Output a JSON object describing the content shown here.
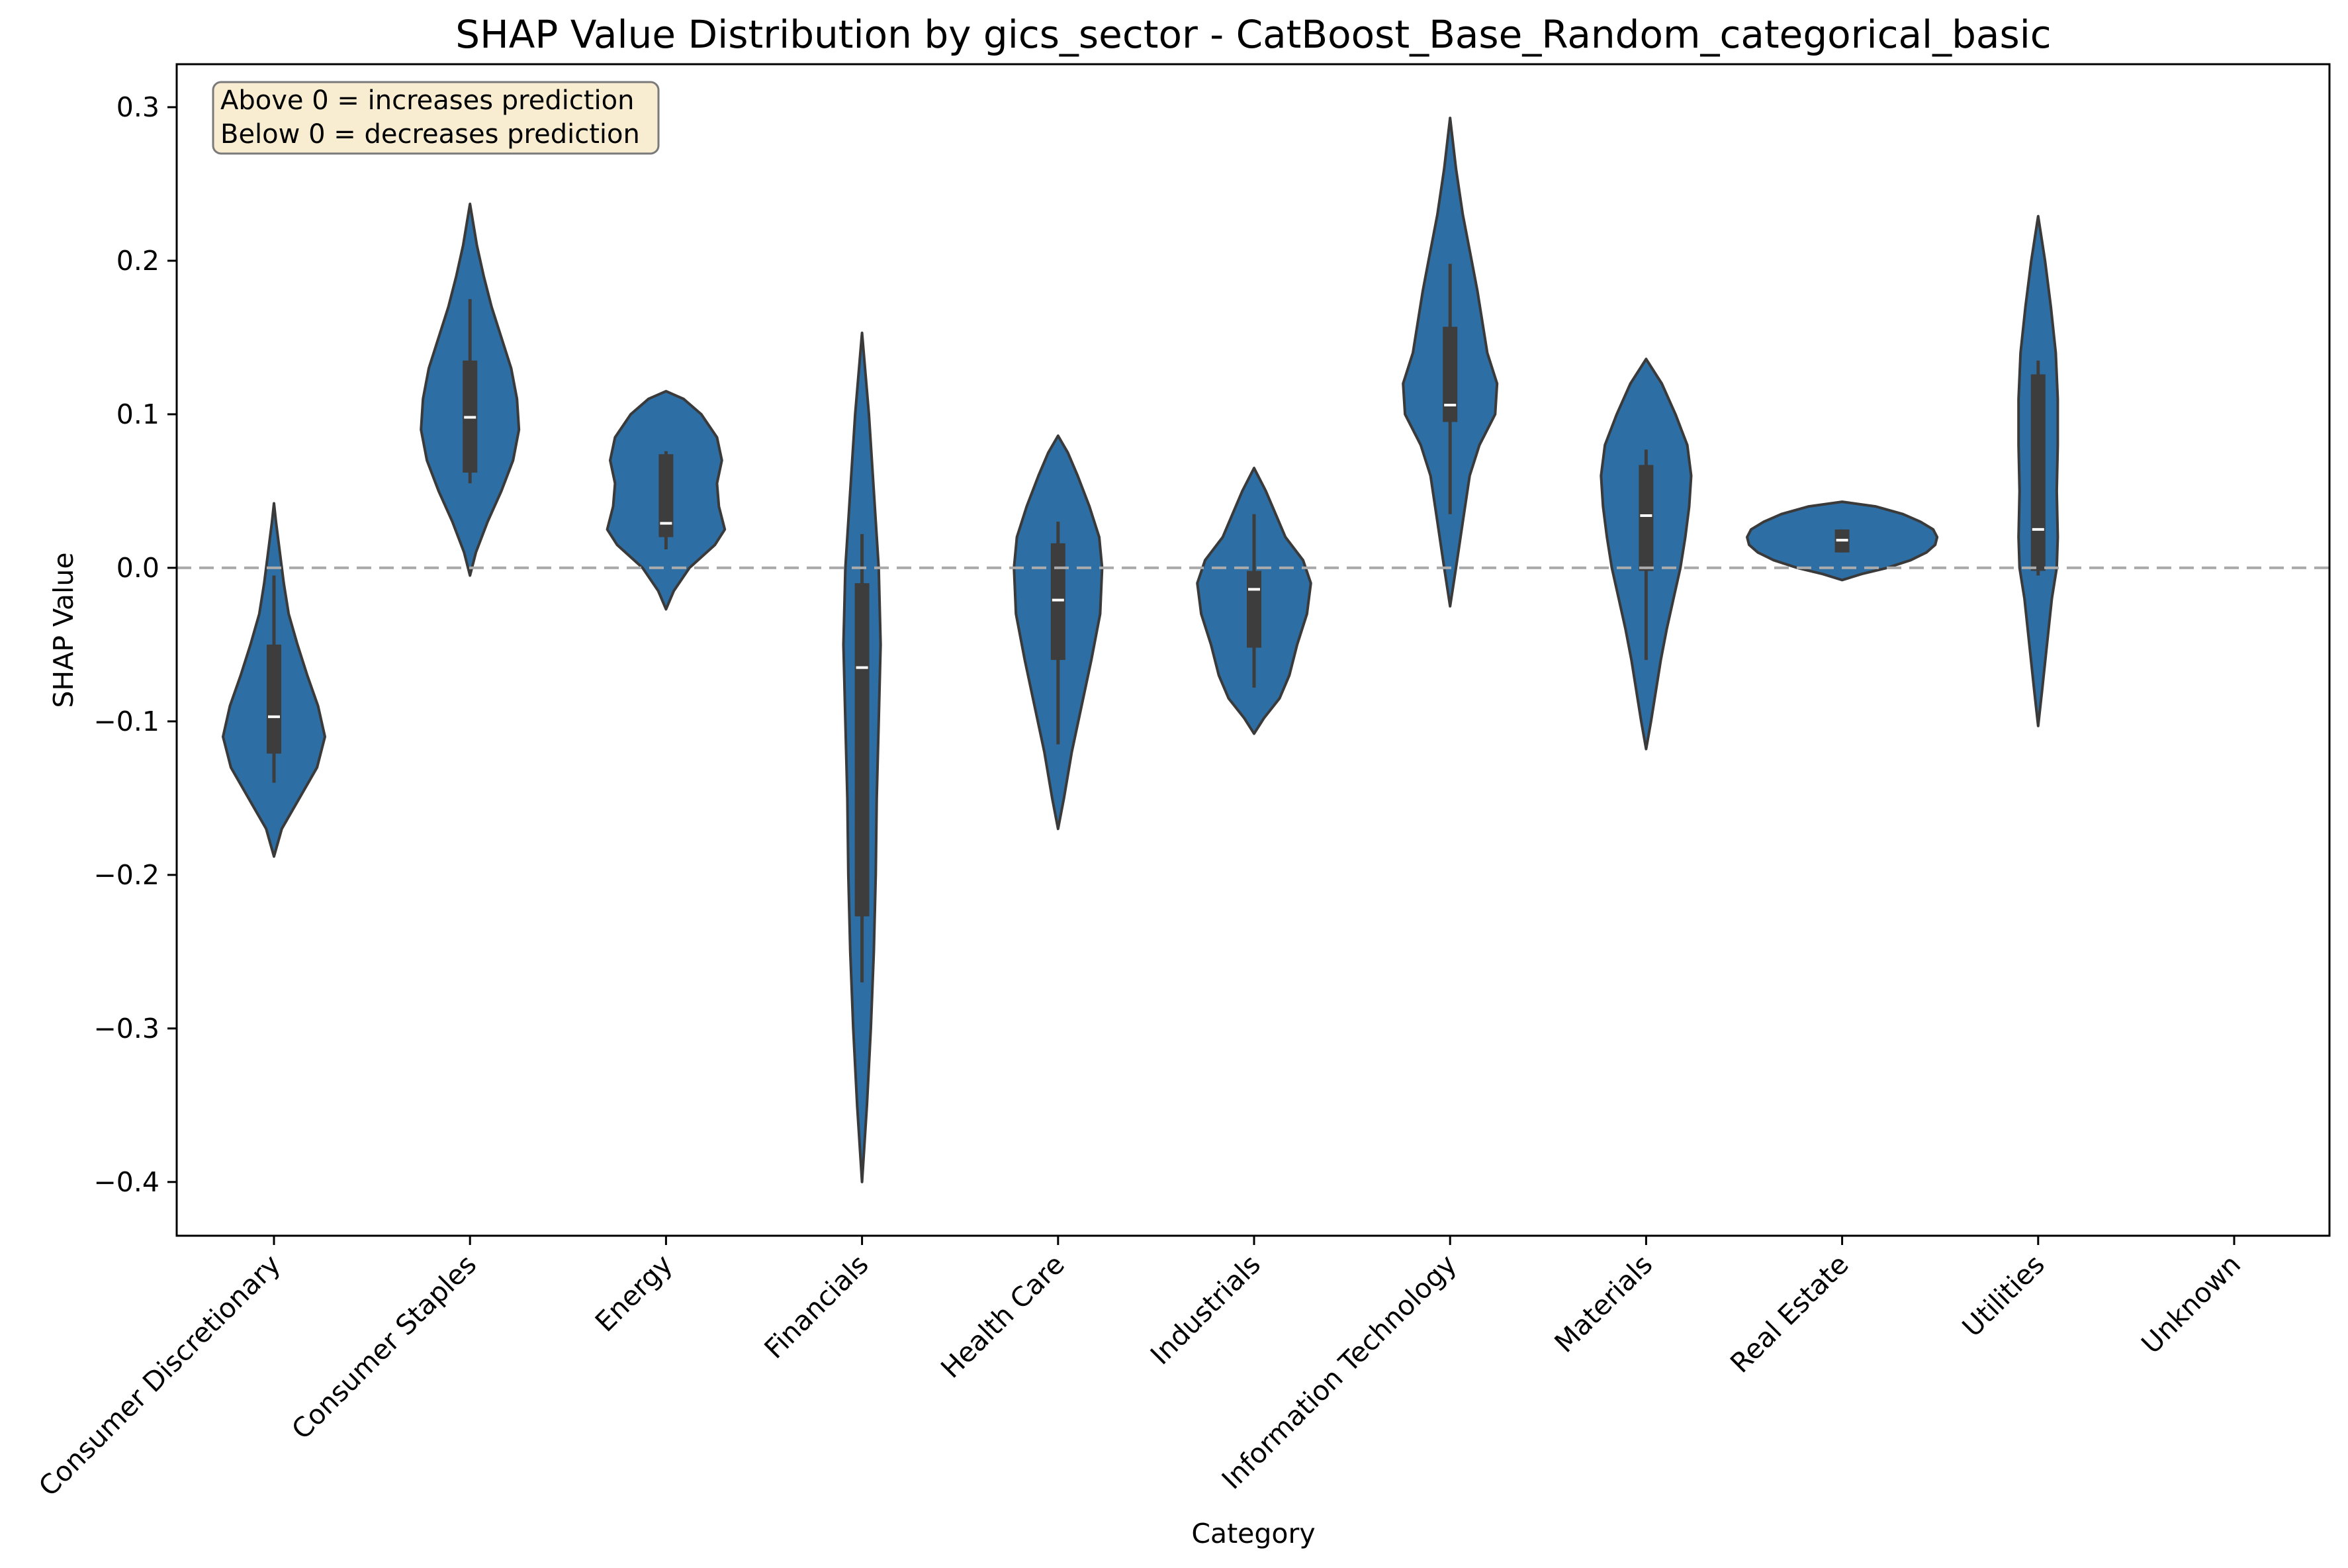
{
  "chart_data": {
    "type": "violin",
    "title": "SHAP Value Distribution by gics_sector - CatBoost_Base_Random_categorical_basic",
    "xlabel": "Category",
    "ylabel": "SHAP Value",
    "ylim": [
      -0.435,
      0.328
    ],
    "yticks": [
      0.3,
      0.2,
      0.1,
      0.0,
      -0.1,
      -0.2,
      -0.3,
      -0.4
    ],
    "ytick_labels": [
      "0.3",
      "0.2",
      "0.1",
      "0.0",
      "−0.1",
      "−0.2",
      "−0.3",
      "−0.4"
    ],
    "reference_line": 0.0,
    "annotation": [
      "Above 0 = increases prediction",
      "Below 0 = decreases prediction"
    ],
    "categories": [
      "Consumer Discretionary",
      "Consumer Staples",
      "Energy",
      "Financials",
      "Health Care",
      "Industrials",
      "Information Technology",
      "Materials",
      "Real Estate",
      "Utilities",
      "Unknown"
    ],
    "violins": [
      {
        "min": -0.188,
        "max": 0.042,
        "q1": -0.121,
        "median": -0.097,
        "q3": -0.05,
        "whisker_low": -0.14,
        "whisker_high": -0.005,
        "profile": [
          [
            -0.188,
            0
          ],
          [
            -0.17,
            0.08
          ],
          [
            -0.15,
            0.26
          ],
          [
            -0.13,
            0.44
          ],
          [
            -0.11,
            0.52
          ],
          [
            -0.09,
            0.45
          ],
          [
            -0.07,
            0.34
          ],
          [
            -0.05,
            0.24
          ],
          [
            -0.03,
            0.15
          ],
          [
            -0.01,
            0.1
          ],
          [
            0.01,
            0.06
          ],
          [
            0.03,
            0.02
          ],
          [
            0.042,
            0
          ]
        ]
      },
      {
        "min": -0.005,
        "max": 0.237,
        "q1": 0.062,
        "median": 0.098,
        "q3": 0.135,
        "whisker_low": 0.055,
        "whisker_high": 0.175,
        "profile": [
          [
            -0.005,
            0
          ],
          [
            0.01,
            0.06
          ],
          [
            0.03,
            0.18
          ],
          [
            0.05,
            0.32
          ],
          [
            0.07,
            0.44
          ],
          [
            0.09,
            0.5
          ],
          [
            0.11,
            0.48
          ],
          [
            0.13,
            0.42
          ],
          [
            0.15,
            0.32
          ],
          [
            0.17,
            0.22
          ],
          [
            0.19,
            0.14
          ],
          [
            0.21,
            0.07
          ],
          [
            0.237,
            0
          ]
        ]
      },
      {
        "min": -0.027,
        "max": 0.115,
        "q1": 0.02,
        "median": 0.029,
        "q3": 0.074,
        "whisker_low": 0.012,
        "whisker_high": 0.076,
        "profile": [
          [
            -0.027,
            0
          ],
          [
            -0.015,
            0.08
          ],
          [
            0.0,
            0.24
          ],
          [
            0.015,
            0.5
          ],
          [
            0.025,
            0.6
          ],
          [
            0.04,
            0.54
          ],
          [
            0.055,
            0.52
          ],
          [
            0.07,
            0.57
          ],
          [
            0.085,
            0.52
          ],
          [
            0.1,
            0.36
          ],
          [
            0.11,
            0.18
          ],
          [
            0.115,
            0
          ]
        ]
      },
      {
        "min": -0.4,
        "max": 0.153,
        "q1": -0.227,
        "median": -0.065,
        "q3": -0.01,
        "whisker_low": -0.27,
        "whisker_high": 0.022,
        "profile": [
          [
            -0.4,
            0
          ],
          [
            -0.35,
            0.05
          ],
          [
            -0.3,
            0.09
          ],
          [
            -0.25,
            0.12
          ],
          [
            -0.2,
            0.14
          ],
          [
            -0.15,
            0.15
          ],
          [
            -0.1,
            0.17
          ],
          [
            -0.05,
            0.19
          ],
          [
            0.0,
            0.17
          ],
          [
            0.05,
            0.12
          ],
          [
            0.1,
            0.07
          ],
          [
            0.153,
            0
          ]
        ]
      },
      {
        "min": -0.17,
        "max": 0.086,
        "q1": -0.06,
        "median": -0.021,
        "q3": 0.016,
        "whisker_low": -0.115,
        "whisker_high": 0.03,
        "profile": [
          [
            -0.17,
            0
          ],
          [
            -0.15,
            0.06
          ],
          [
            -0.12,
            0.14
          ],
          [
            -0.09,
            0.24
          ],
          [
            -0.06,
            0.34
          ],
          [
            -0.03,
            0.43
          ],
          [
            0.0,
            0.45
          ],
          [
            0.02,
            0.42
          ],
          [
            0.04,
            0.32
          ],
          [
            0.06,
            0.2
          ],
          [
            0.075,
            0.1
          ],
          [
            0.086,
            0
          ]
        ]
      },
      {
        "min": -0.108,
        "max": 0.065,
        "q1": -0.052,
        "median": -0.014,
        "q3": -0.002,
        "whisker_low": -0.078,
        "whisker_high": 0.035,
        "profile": [
          [
            -0.108,
            0
          ],
          [
            -0.098,
            0.1
          ],
          [
            -0.085,
            0.26
          ],
          [
            -0.07,
            0.36
          ],
          [
            -0.05,
            0.44
          ],
          [
            -0.03,
            0.54
          ],
          [
            -0.01,
            0.58
          ],
          [
            0.005,
            0.5
          ],
          [
            0.02,
            0.32
          ],
          [
            0.035,
            0.22
          ],
          [
            0.05,
            0.12
          ],
          [
            0.065,
            0
          ]
        ]
      },
      {
        "min": -0.025,
        "max": 0.293,
        "q1": 0.095,
        "median": 0.106,
        "q3": 0.157,
        "whisker_low": 0.035,
        "whisker_high": 0.198,
        "profile": [
          [
            -0.025,
            0
          ],
          [
            0.0,
            0.06
          ],
          [
            0.03,
            0.13
          ],
          [
            0.06,
            0.2
          ],
          [
            0.08,
            0.3
          ],
          [
            0.1,
            0.46
          ],
          [
            0.12,
            0.48
          ],
          [
            0.14,
            0.38
          ],
          [
            0.16,
            0.33
          ],
          [
            0.18,
            0.28
          ],
          [
            0.2,
            0.22
          ],
          [
            0.23,
            0.13
          ],
          [
            0.26,
            0.06
          ],
          [
            0.293,
            0
          ]
        ]
      },
      {
        "min": -0.118,
        "max": 0.136,
        "q1": -0.002,
        "median": 0.034,
        "q3": 0.067,
        "whisker_low": -0.06,
        "whisker_high": 0.077,
        "profile": [
          [
            -0.118,
            0
          ],
          [
            -0.1,
            0.05
          ],
          [
            -0.08,
            0.1
          ],
          [
            -0.06,
            0.15
          ],
          [
            -0.04,
            0.21
          ],
          [
            -0.02,
            0.28
          ],
          [
            0.0,
            0.35
          ],
          [
            0.02,
            0.4
          ],
          [
            0.04,
            0.44
          ],
          [
            0.06,
            0.46
          ],
          [
            0.08,
            0.42
          ],
          [
            0.1,
            0.3
          ],
          [
            0.12,
            0.16
          ],
          [
            0.136,
            0
          ]
        ]
      },
      {
        "min": -0.008,
        "max": 0.043,
        "q1": 0.01,
        "median": 0.018,
        "q3": 0.025,
        "whisker_low": 0.01,
        "whisker_high": 0.025,
        "profile": [
          [
            -0.008,
            0
          ],
          [
            -0.004,
            0.2
          ],
          [
            0.0,
            0.46
          ],
          [
            0.005,
            0.7
          ],
          [
            0.01,
            0.86
          ],
          [
            0.015,
            0.95
          ],
          [
            0.02,
            0.97
          ],
          [
            0.025,
            0.93
          ],
          [
            0.03,
            0.8
          ],
          [
            0.035,
            0.62
          ],
          [
            0.04,
            0.34
          ],
          [
            0.043,
            0
          ]
        ]
      },
      {
        "min": -0.103,
        "max": 0.229,
        "q1": -0.002,
        "median": 0.025,
        "q3": 0.126,
        "whisker_low": -0.005,
        "whisker_high": 0.135,
        "profile": [
          [
            -0.103,
            0
          ],
          [
            -0.08,
            0.04
          ],
          [
            -0.05,
            0.09
          ],
          [
            -0.02,
            0.14
          ],
          [
            0.0,
            0.19
          ],
          [
            0.02,
            0.2
          ],
          [
            0.05,
            0.19
          ],
          [
            0.08,
            0.2
          ],
          [
            0.11,
            0.2
          ],
          [
            0.14,
            0.18
          ],
          [
            0.17,
            0.13
          ],
          [
            0.2,
            0.07
          ],
          [
            0.229,
            0
          ]
        ]
      },
      null
    ]
  },
  "colors": {
    "violin_fill": "#2d6fa5",
    "violin_edge": "#3a3a3a",
    "box": "#3d3d3d",
    "median": "#ffffff",
    "reference_line": "#aaaaaa",
    "annotation_fill": "#f8ecd1",
    "annotation_edge": "#7a7a7a"
  }
}
